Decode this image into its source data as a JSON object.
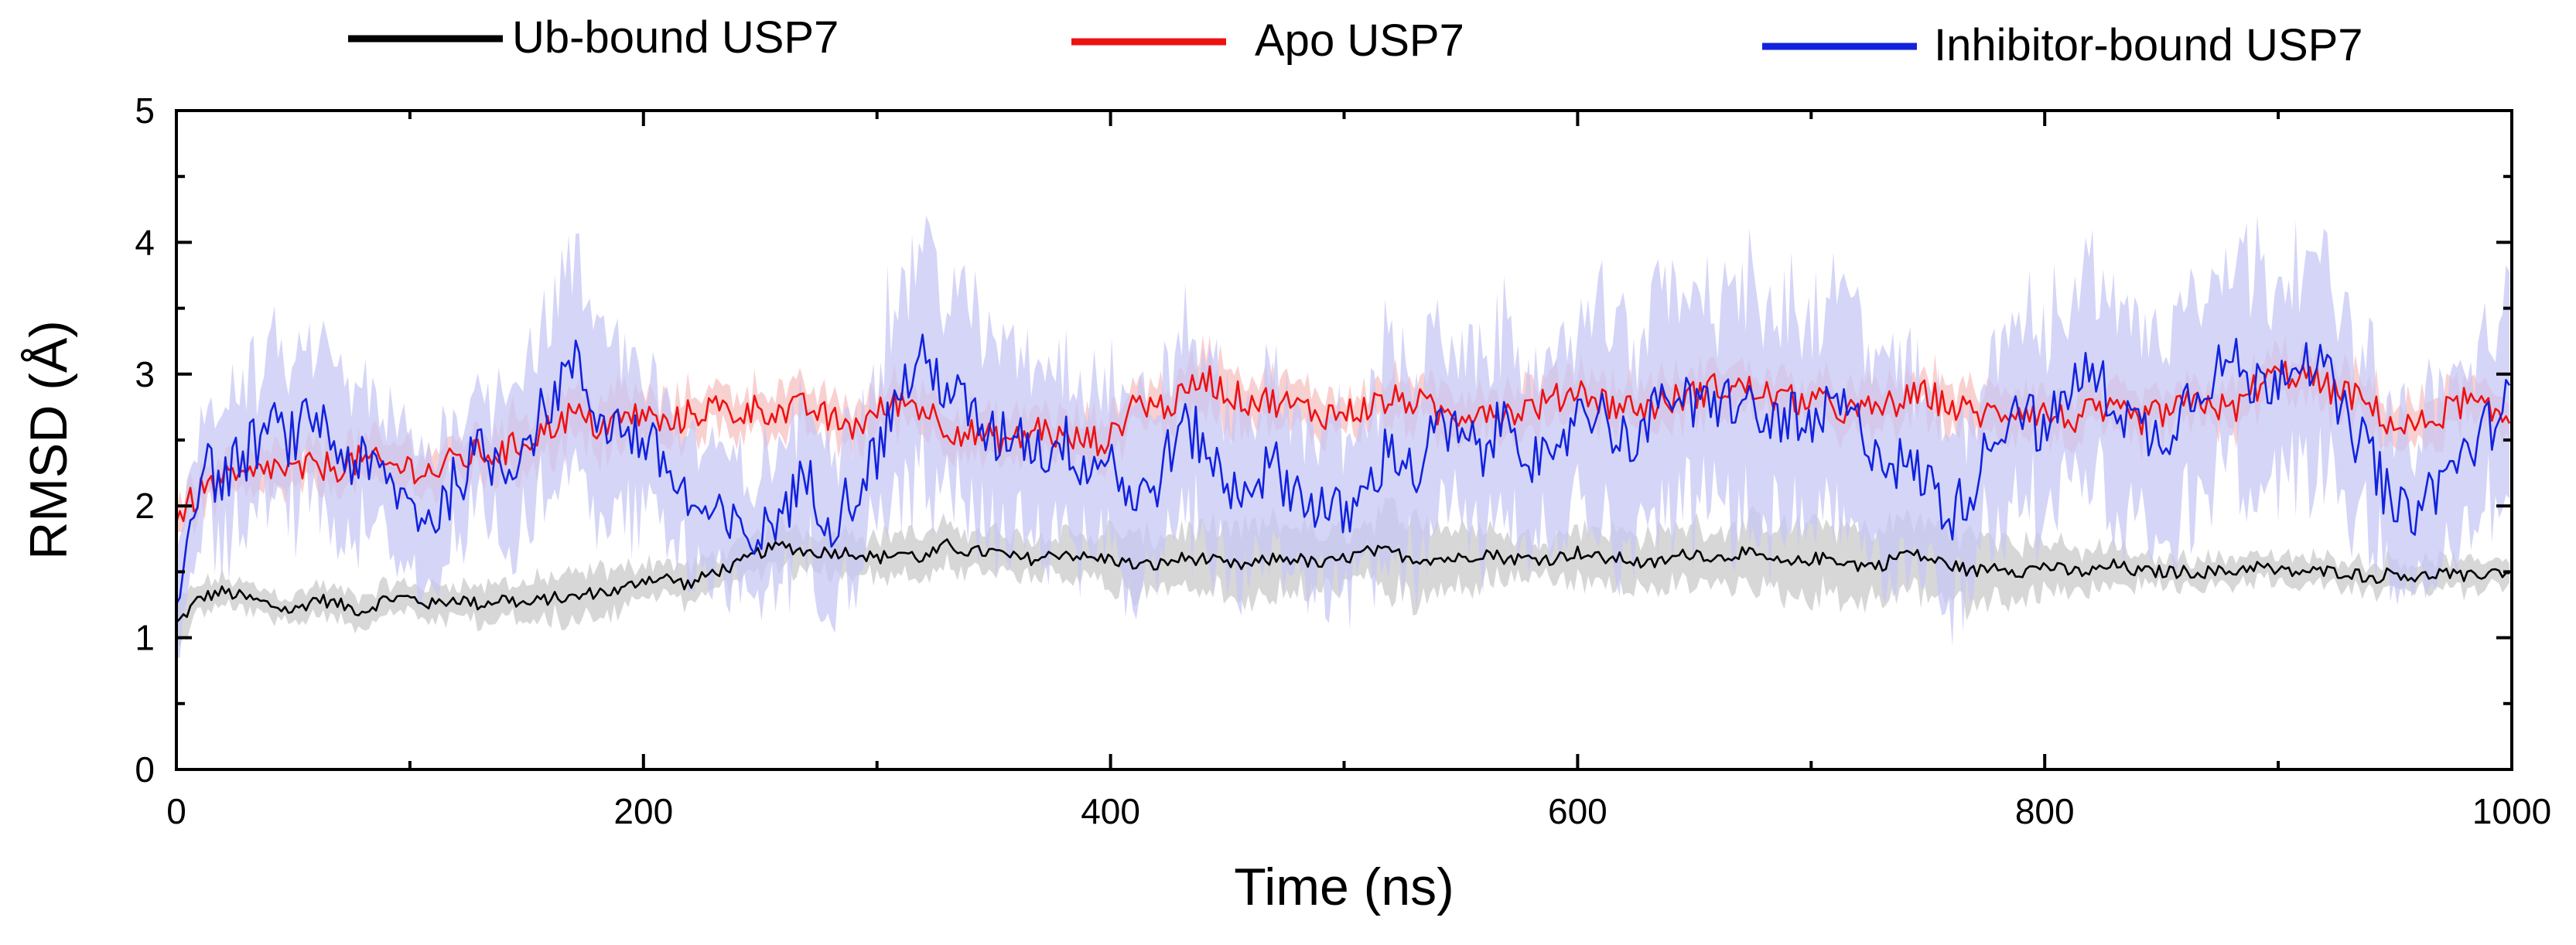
{
  "chart_data": {
    "type": "line",
    "title": "",
    "xlabel": "Time (ns)",
    "ylabel": "RMSD (Å)",
    "xlim": [
      0,
      1000
    ],
    "ylim": [
      0,
      5
    ],
    "xticks": [
      0,
      200,
      400,
      600,
      800,
      1000
    ],
    "yticks": [
      0,
      1,
      2,
      3,
      4,
      5
    ],
    "x_minor_step": 100,
    "y_minor_step": 0.5,
    "legend_position": "top",
    "series": [
      {
        "name": "Ub-bound USP7",
        "color": "#000000",
        "band_color": "#c9c9c9",
        "x": [
          0,
          10,
          20,
          30,
          40,
          50,
          60,
          70,
          80,
          90,
          100,
          110,
          120,
          130,
          140,
          150,
          160,
          170,
          180,
          190,
          200,
          210,
          220,
          230,
          240,
          250,
          260,
          270,
          280,
          290,
          300,
          310,
          320,
          330,
          340,
          350,
          360,
          370,
          380,
          390,
          400,
          410,
          420,
          430,
          440,
          450,
          460,
          470,
          480,
          490,
          500,
          510,
          520,
          530,
          540,
          550,
          560,
          570,
          580,
          590,
          600,
          610,
          620,
          630,
          640,
          650,
          660,
          670,
          680,
          690,
          700,
          710,
          720,
          730,
          740,
          750,
          760,
          770,
          780,
          790,
          800,
          810,
          820,
          830,
          840,
          850,
          860,
          870,
          880,
          890,
          900,
          910,
          920,
          930,
          940,
          950,
          960,
          970,
          980,
          990,
          1000
        ],
        "values": [
          1.1,
          1.3,
          1.35,
          1.3,
          1.25,
          1.2,
          1.3,
          1.25,
          1.2,
          1.3,
          1.3,
          1.25,
          1.3,
          1.25,
          1.3,
          1.25,
          1.3,
          1.3,
          1.35,
          1.35,
          1.45,
          1.45,
          1.4,
          1.5,
          1.55,
          1.65,
          1.7,
          1.65,
          1.65,
          1.65,
          1.6,
          1.65,
          1.6,
          1.7,
          1.65,
          1.65,
          1.6,
          1.6,
          1.65,
          1.6,
          1.6,
          1.55,
          1.55,
          1.6,
          1.6,
          1.55,
          1.55,
          1.6,
          1.6,
          1.55,
          1.6,
          1.65,
          1.65,
          1.6,
          1.6,
          1.6,
          1.65,
          1.6,
          1.6,
          1.6,
          1.65,
          1.6,
          1.6,
          1.55,
          1.6,
          1.65,
          1.6,
          1.65,
          1.6,
          1.55,
          1.6,
          1.6,
          1.55,
          1.55,
          1.65,
          1.6,
          1.55,
          1.5,
          1.55,
          1.5,
          1.55,
          1.5,
          1.5,
          1.55,
          1.5,
          1.5,
          1.5,
          1.5,
          1.5,
          1.55,
          1.5,
          1.5,
          1.5,
          1.5,
          1.45,
          1.5,
          1.45,
          1.5,
          1.45,
          1.5,
          1.5
        ],
        "band": [
          0.15,
          0.1,
          0.1,
          0.1,
          0.1,
          0.1,
          0.1,
          0.1,
          0.1,
          0.1,
          0.1,
          0.12,
          0.12,
          0.12,
          0.12,
          0.15,
          0.15,
          0.15,
          0.15,
          0.15,
          0.12,
          0.12,
          0.12,
          0.12,
          0.12,
          0.15,
          0.15,
          0.15,
          0.15,
          0.15,
          0.15,
          0.15,
          0.15,
          0.15,
          0.15,
          0.15,
          0.15,
          0.15,
          0.15,
          0.15,
          0.2,
          0.2,
          0.2,
          0.2,
          0.2,
          0.25,
          0.25,
          0.25,
          0.25,
          0.2,
          0.2,
          0.2,
          0.3,
          0.3,
          0.25,
          0.2,
          0.2,
          0.15,
          0.15,
          0.15,
          0.2,
          0.2,
          0.2,
          0.2,
          0.2,
          0.2,
          0.2,
          0.2,
          0.25,
          0.25,
          0.25,
          0.25,
          0.25,
          0.25,
          0.25,
          0.25,
          0.25,
          0.25,
          0.2,
          0.2,
          0.2,
          0.15,
          0.15,
          0.15,
          0.1,
          0.1,
          0.1,
          0.1,
          0.1,
          0.1,
          0.1,
          0.1,
          0.1,
          0.1,
          0.1,
          0.1,
          0.1,
          0.1,
          0.1,
          0.1,
          0.1
        ]
      },
      {
        "name": "Apo USP7",
        "color": "#ee1111",
        "band_color": "#f7c0c0",
        "x": [
          0,
          10,
          20,
          30,
          40,
          50,
          60,
          70,
          80,
          90,
          100,
          110,
          120,
          130,
          140,
          150,
          160,
          170,
          180,
          190,
          200,
          210,
          220,
          230,
          240,
          250,
          260,
          270,
          280,
          290,
          300,
          310,
          320,
          330,
          340,
          350,
          360,
          370,
          380,
          390,
          400,
          410,
          420,
          430,
          440,
          450,
          460,
          470,
          480,
          490,
          500,
          510,
          520,
          530,
          540,
          550,
          560,
          570,
          580,
          590,
          600,
          610,
          620,
          630,
          640,
          650,
          660,
          670,
          680,
          690,
          700,
          710,
          720,
          730,
          740,
          750,
          760,
          770,
          780,
          790,
          800,
          810,
          820,
          830,
          840,
          850,
          860,
          870,
          880,
          890,
          900,
          910,
          920,
          930,
          940,
          950,
          960,
          970,
          980,
          990,
          1000
        ],
        "values": [
          1.9,
          2.1,
          2.2,
          2.2,
          2.3,
          2.25,
          2.3,
          2.3,
          2.35,
          2.3,
          2.3,
          2.25,
          2.35,
          2.4,
          2.4,
          2.5,
          2.6,
          2.7,
          2.6,
          2.65,
          2.7,
          2.6,
          2.7,
          2.75,
          2.7,
          2.75,
          2.7,
          2.75,
          2.65,
          2.6,
          2.7,
          2.8,
          2.75,
          2.6,
          2.55,
          2.5,
          2.5,
          2.6,
          2.5,
          2.5,
          2.5,
          2.8,
          2.75,
          2.8,
          3.0,
          2.85,
          2.8,
          2.8,
          2.75,
          2.7,
          2.7,
          2.75,
          2.8,
          2.8,
          2.7,
          2.7,
          2.75,
          2.7,
          2.75,
          2.8,
          2.9,
          2.8,
          2.75,
          2.75,
          2.8,
          2.85,
          2.9,
          2.9,
          2.85,
          2.8,
          2.8,
          2.75,
          2.7,
          2.75,
          2.8,
          2.85,
          2.75,
          2.7,
          2.7,
          2.75,
          2.7,
          2.65,
          2.7,
          2.7,
          2.65,
          2.7,
          2.75,
          2.8,
          2.7,
          2.9,
          3.0,
          3.0,
          2.9,
          2.85,
          2.75,
          2.6,
          2.6,
          2.7,
          2.8,
          2.7,
          2.65
        ],
        "band": [
          0.1,
          0.15,
          0.15,
          0.15,
          0.15,
          0.15,
          0.15,
          0.15,
          0.15,
          0.15,
          0.15,
          0.15,
          0.15,
          0.15,
          0.2,
          0.2,
          0.2,
          0.2,
          0.2,
          0.2,
          0.15,
          0.15,
          0.15,
          0.15,
          0.15,
          0.15,
          0.15,
          0.15,
          0.15,
          0.15,
          0.15,
          0.15,
          0.15,
          0.15,
          0.15,
          0.15,
          0.15,
          0.15,
          0.15,
          0.15,
          0.15,
          0.15,
          0.15,
          0.15,
          0.2,
          0.2,
          0.15,
          0.15,
          0.15,
          0.15,
          0.15,
          0.15,
          0.15,
          0.15,
          0.15,
          0.15,
          0.15,
          0.15,
          0.15,
          0.15,
          0.15,
          0.15,
          0.15,
          0.15,
          0.15,
          0.15,
          0.15,
          0.15,
          0.15,
          0.15,
          0.15,
          0.15,
          0.15,
          0.15,
          0.15,
          0.15,
          0.15,
          0.15,
          0.15,
          0.15,
          0.15,
          0.15,
          0.15,
          0.15,
          0.15,
          0.15,
          0.15,
          0.15,
          0.15,
          0.15,
          0.15,
          0.15,
          0.15,
          0.15,
          0.15,
          0.15,
          0.15,
          0.15,
          0.15,
          0.15,
          0.15
        ]
      },
      {
        "name": "Inhibitor-bound USP7",
        "color": "#1122dd",
        "band_color": "#c7c7f4",
        "x": [
          0,
          10,
          20,
          30,
          40,
          50,
          60,
          70,
          80,
          90,
          100,
          110,
          120,
          130,
          140,
          150,
          160,
          170,
          180,
          190,
          200,
          210,
          220,
          230,
          240,
          250,
          260,
          270,
          280,
          290,
          300,
          310,
          320,
          330,
          340,
          350,
          360,
          370,
          380,
          390,
          400,
          410,
          420,
          430,
          440,
          450,
          460,
          470,
          480,
          490,
          500,
          510,
          520,
          530,
          540,
          550,
          560,
          570,
          580,
          590,
          600,
          610,
          620,
          630,
          640,
          650,
          660,
          670,
          680,
          690,
          700,
          710,
          720,
          730,
          740,
          750,
          760,
          770,
          780,
          790,
          800,
          810,
          820,
          830,
          840,
          850,
          860,
          870,
          880,
          890,
          900,
          910,
          920,
          930,
          940,
          950,
          960,
          970,
          980,
          990,
          1000
        ],
        "values": [
          1.3,
          2.3,
          2.2,
          2.4,
          2.6,
          2.5,
          2.7,
          2.4,
          2.3,
          2.2,
          2.0,
          1.9,
          2.2,
          2.4,
          2.3,
          2.5,
          2.8,
          3.1,
          2.7,
          2.6,
          2.5,
          2.3,
          2.0,
          1.9,
          1.8,
          1.75,
          2.0,
          2.2,
          1.9,
          2.1,
          2.4,
          2.9,
          3.1,
          2.9,
          2.7,
          2.5,
          2.6,
          2.4,
          2.5,
          2.3,
          2.4,
          2.0,
          2.2,
          2.6,
          2.5,
          2.1,
          2.2,
          2.3,
          2.1,
          2.0,
          1.9,
          2.1,
          2.5,
          2.2,
          2.6,
          2.5,
          2.4,
          2.7,
          2.4,
          2.2,
          2.8,
          2.7,
          2.5,
          2.6,
          2.9,
          2.7,
          2.8,
          2.8,
          2.6,
          2.7,
          2.5,
          2.8,
          2.6,
          2.4,
          2.3,
          2.2,
          1.9,
          2.2,
          2.6,
          2.8,
          2.5,
          2.9,
          3.0,
          2.8,
          2.6,
          2.5,
          2.8,
          3.0,
          3.1,
          2.9,
          3.0,
          3.2,
          3.0,
          2.6,
          2.4,
          1.9,
          2.0,
          2.2,
          2.4,
          2.6,
          2.9
        ],
        "band": [
          0.35,
          0.4,
          0.45,
          0.45,
          0.5,
          0.55,
          0.5,
          0.5,
          0.5,
          0.45,
          0.45,
          0.45,
          0.5,
          0.5,
          0.55,
          0.6,
          0.6,
          0.65,
          0.6,
          0.6,
          0.55,
          0.5,
          0.45,
          0.45,
          0.45,
          0.45,
          0.45,
          0.5,
          0.5,
          0.55,
          0.65,
          0.75,
          0.8,
          0.75,
          0.7,
          0.65,
          0.6,
          0.6,
          0.6,
          0.6,
          0.55,
          0.6,
          0.6,
          0.65,
          0.65,
          0.6,
          0.55,
          0.55,
          0.55,
          0.55,
          0.6,
          0.6,
          0.7,
          0.7,
          0.65,
          0.6,
          0.6,
          0.65,
          0.65,
          0.6,
          0.65,
          0.7,
          0.75,
          0.75,
          0.8,
          0.8,
          0.8,
          0.8,
          0.8,
          0.8,
          0.8,
          0.8,
          0.75,
          0.7,
          0.65,
          0.6,
          0.6,
          0.6,
          0.6,
          0.65,
          0.65,
          0.7,
          0.75,
          0.75,
          0.7,
          0.7,
          0.75,
          0.75,
          0.8,
          0.8,
          0.75,
          0.75,
          0.7,
          0.7,
          0.65,
          0.6,
          0.6,
          0.6,
          0.6,
          0.6,
          0.6
        ]
      }
    ]
  }
}
